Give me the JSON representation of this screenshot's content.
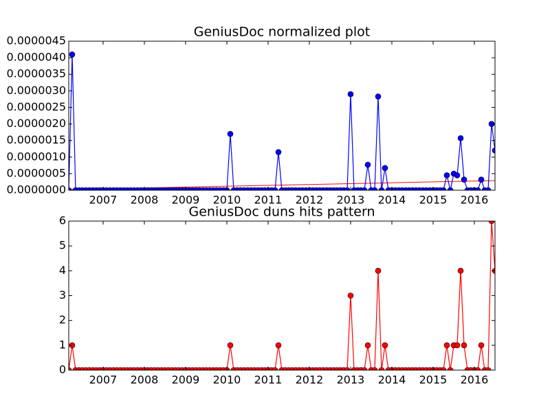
{
  "chart_data": [
    {
      "type": "line",
      "title": "GeniusDoc normalized plot",
      "x": [
        2006.167,
        2006.25,
        2006.333,
        2006.417,
        2006.5,
        2006.583,
        2006.667,
        2006.75,
        2006.833,
        2006.917,
        2007,
        2007.083,
        2007.167,
        2007.25,
        2007.333,
        2007.417,
        2007.5,
        2007.583,
        2007.667,
        2007.75,
        2007.833,
        2007.917,
        2008,
        2008.083,
        2008.167,
        2008.25,
        2008.333,
        2008.417,
        2008.5,
        2008.583,
        2008.667,
        2008.75,
        2008.833,
        2008.917,
        2009,
        2009.083,
        2009.167,
        2009.25,
        2009.333,
        2009.417,
        2009.5,
        2009.583,
        2009.667,
        2009.75,
        2009.833,
        2009.917,
        2010,
        2010.083,
        2010.167,
        2010.25,
        2010.333,
        2010.417,
        2010.5,
        2010.583,
        2010.667,
        2010.75,
        2010.833,
        2010.917,
        2011,
        2011.083,
        2011.167,
        2011.25,
        2011.333,
        2011.417,
        2011.5,
        2011.583,
        2011.667,
        2011.75,
        2011.833,
        2011.917,
        2012,
        2012.083,
        2012.167,
        2012.25,
        2012.333,
        2012.417,
        2012.5,
        2012.583,
        2012.667,
        2012.75,
        2012.833,
        2012.917,
        2013,
        2013.083,
        2013.167,
        2013.25,
        2013.333,
        2013.417,
        2013.5,
        2013.583,
        2013.667,
        2013.75,
        2013.833,
        2013.917,
        2014,
        2014.083,
        2014.167,
        2014.25,
        2014.333,
        2014.417,
        2014.5,
        2014.583,
        2014.667,
        2014.75,
        2014.833,
        2014.917,
        2015,
        2015.083,
        2015.167,
        2015.25,
        2015.333,
        2015.417,
        2015.5,
        2015.583,
        2015.667,
        2015.75,
        2015.833,
        2015.917,
        2016,
        2016.083,
        2016.167,
        2016.25,
        2016.333,
        2016.417,
        2016.5
      ],
      "series": [
        {
          "color": "#0000ff",
          "values": [
            0,
            4.1e-06,
            0,
            0,
            0,
            0,
            0,
            0,
            0,
            0,
            0,
            0,
            0,
            0,
            0,
            0,
            0,
            0,
            0,
            0,
            0,
            0,
            0,
            0,
            0,
            0,
            0,
            0,
            0,
            0,
            0,
            0,
            0,
            0,
            0,
            0,
            0,
            0,
            0,
            0,
            0,
            0,
            0,
            0,
            0,
            0,
            0,
            1.7e-06,
            0,
            0,
            0,
            0,
            0,
            0,
            0,
            0,
            0,
            0,
            0,
            0,
            0,
            1.15e-06,
            0,
            0,
            0,
            0,
            0,
            0,
            0,
            0,
            0,
            0,
            0,
            0,
            0,
            0,
            0,
            0,
            0,
            0,
            0,
            0,
            2.9e-06,
            0,
            0,
            0,
            0,
            7.7e-07,
            0,
            0,
            2.83e-06,
            0,
            6.7e-07,
            0,
            0,
            0,
            0,
            0,
            0,
            0,
            0,
            0,
            0,
            0,
            0,
            0,
            0,
            0,
            0,
            0,
            4.5e-07,
            0,
            5e-07,
            4.5e-07,
            1.57e-06,
            3.2e-07,
            0,
            0,
            0,
            0,
            3.2e-07,
            0,
            0,
            2e-06,
            1.2e-06
          ]
        }
      ],
      "trend": {
        "color": "#ff0000",
        "x": [
          2006.167,
          2016.5
        ],
        "values": [
          2e-08,
          2.9e-07
        ]
      },
      "xlim": [
        2006.167,
        2016.5
      ],
      "xticks": [
        2007,
        2008,
        2009,
        2010,
        2011,
        2012,
        2013,
        2014,
        2015,
        2016
      ],
      "ylim": [
        0,
        4.5e-06
      ],
      "yticks": [
        {
          "value": 0,
          "label": "0.0000000"
        },
        {
          "value": 5e-07,
          "label": "0.0000005"
        },
        {
          "value": 1e-06,
          "label": "0.0000010"
        },
        {
          "value": 1.5e-06,
          "label": "0.0000015"
        },
        {
          "value": 2e-06,
          "label": "0.0000020"
        },
        {
          "value": 2.5e-06,
          "label": "0.0000025"
        },
        {
          "value": 3e-06,
          "label": "0.0000030"
        },
        {
          "value": 3.5e-06,
          "label": "0.0000035"
        },
        {
          "value": 4e-06,
          "label": "0.0000040"
        },
        {
          "value": 4.5e-06,
          "label": "0.0000045"
        }
      ]
    },
    {
      "type": "line",
      "title": "GeniusDoc duns hits pattern",
      "x": [
        2006.167,
        2006.25,
        2006.333,
        2006.417,
        2006.5,
        2006.583,
        2006.667,
        2006.75,
        2006.833,
        2006.917,
        2007,
        2007.083,
        2007.167,
        2007.25,
        2007.333,
        2007.417,
        2007.5,
        2007.583,
        2007.667,
        2007.75,
        2007.833,
        2007.917,
        2008,
        2008.083,
        2008.167,
        2008.25,
        2008.333,
        2008.417,
        2008.5,
        2008.583,
        2008.667,
        2008.75,
        2008.833,
        2008.917,
        2009,
        2009.083,
        2009.167,
        2009.25,
        2009.333,
        2009.417,
        2009.5,
        2009.583,
        2009.667,
        2009.75,
        2009.833,
        2009.917,
        2010,
        2010.083,
        2010.167,
        2010.25,
        2010.333,
        2010.417,
        2010.5,
        2010.583,
        2010.667,
        2010.75,
        2010.833,
        2010.917,
        2011,
        2011.083,
        2011.167,
        2011.25,
        2011.333,
        2011.417,
        2011.5,
        2011.583,
        2011.667,
        2011.75,
        2011.833,
        2011.917,
        2012,
        2012.083,
        2012.167,
        2012.25,
        2012.333,
        2012.417,
        2012.5,
        2012.583,
        2012.667,
        2012.75,
        2012.833,
        2012.917,
        2013,
        2013.083,
        2013.167,
        2013.25,
        2013.333,
        2013.417,
        2013.5,
        2013.583,
        2013.667,
        2013.75,
        2013.833,
        2013.917,
        2014,
        2014.083,
        2014.167,
        2014.25,
        2014.333,
        2014.417,
        2014.5,
        2014.583,
        2014.667,
        2014.75,
        2014.833,
        2014.917,
        2015,
        2015.083,
        2015.167,
        2015.25,
        2015.333,
        2015.417,
        2015.5,
        2015.583,
        2015.667,
        2015.75,
        2015.833,
        2015.917,
        2016,
        2016.083,
        2016.167,
        2016.25,
        2016.333,
        2016.417,
        2016.5
      ],
      "series": [
        {
          "color": "#ff0000",
          "values": [
            0,
            1,
            0,
            0,
            0,
            0,
            0,
            0,
            0,
            0,
            0,
            0,
            0,
            0,
            0,
            0,
            0,
            0,
            0,
            0,
            0,
            0,
            0,
            0,
            0,
            0,
            0,
            0,
            0,
            0,
            0,
            0,
            0,
            0,
            0,
            0,
            0,
            0,
            0,
            0,
            0,
            0,
            0,
            0,
            0,
            0,
            0,
            1,
            0,
            0,
            0,
            0,
            0,
            0,
            0,
            0,
            0,
            0,
            0,
            0,
            0,
            1,
            0,
            0,
            0,
            0,
            0,
            0,
            0,
            0,
            0,
            0,
            0,
            0,
            0,
            0,
            0,
            0,
            0,
            0,
            0,
            0,
            3,
            0,
            0,
            0,
            0,
            1,
            0,
            0,
            4,
            0,
            1,
            0,
            0,
            0,
            0,
            0,
            0,
            0,
            0,
            0,
            0,
            0,
            0,
            0,
            0,
            0,
            0,
            0,
            1,
            0,
            1,
            1,
            4,
            1,
            0,
            0,
            0,
            0,
            1,
            0,
            0,
            6,
            4
          ]
        }
      ],
      "xlim": [
        2006.167,
        2016.5
      ],
      "xticks": [
        2007,
        2008,
        2009,
        2010,
        2011,
        2012,
        2013,
        2014,
        2015,
        2016
      ],
      "ylim": [
        0,
        6
      ],
      "yticks": [
        0,
        1,
        2,
        3,
        4,
        5,
        6
      ]
    }
  ]
}
